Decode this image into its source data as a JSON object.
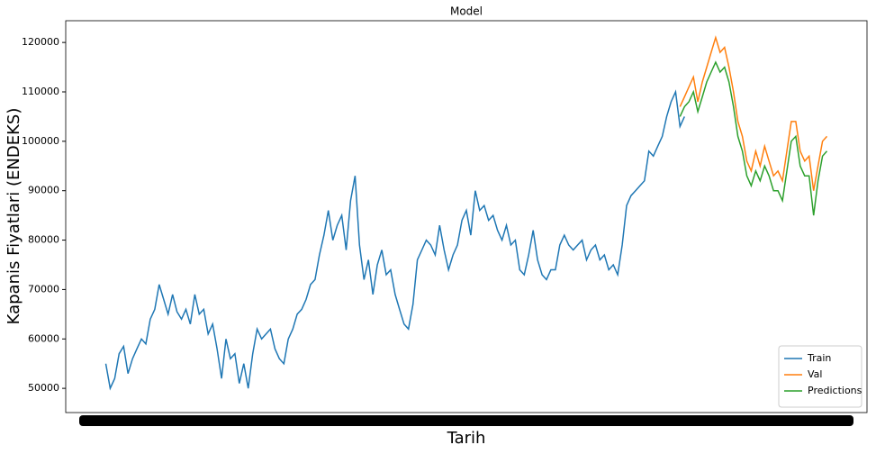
{
  "chart_data": {
    "type": "line",
    "title": "Model",
    "xlabel": "Tarih",
    "ylabel": "Kapanis Fiyatlari (ENDEKS)",
    "ylim": [
      45100,
      124400
    ],
    "yticks": [
      50000,
      60000,
      70000,
      80000,
      90000,
      100000,
      110000,
      120000
    ],
    "legend": "lower right",
    "series": [
      {
        "name": "Train",
        "color": "#1f77b4",
        "values": [
          55000,
          50000,
          52000,
          57000,
          58500,
          53000,
          56000,
          58000,
          60000,
          59000,
          64000,
          66000,
          71000,
          68000,
          65000,
          69000,
          65500,
          64000,
          66000,
          63000,
          69000,
          65000,
          66000,
          61000,
          63000,
          58000,
          52000,
          60000,
          56000,
          57000,
          51000,
          55000,
          50000,
          57000,
          62000,
          60000,
          61000,
          62000,
          58000,
          56000,
          55000,
          60000,
          62000,
          65000,
          66000,
          68000,
          71000,
          72000,
          77000,
          81000,
          86000,
          80000,
          83000,
          85000,
          78000,
          88000,
          93000,
          79000,
          72000,
          76000,
          69000,
          75000,
          78000,
          73000,
          74000,
          69000,
          66000,
          63000,
          62000,
          67000,
          76000,
          78000,
          80000,
          79000,
          77000,
          83000,
          78000,
          74000,
          77000,
          79000,
          84000,
          86000,
          81000,
          90000,
          86000,
          87000,
          84000,
          85000,
          82000,
          80000,
          83000,
          79000,
          80000,
          74000,
          73000,
          77000,
          82000,
          76000,
          73000,
          72000,
          74000,
          74000,
          79000,
          81000,
          79000,
          78000,
          79000,
          80000,
          76000,
          78000,
          79000,
          76000,
          77000,
          74000,
          75000,
          73000,
          79000,
          87000,
          89000,
          90000,
          91000,
          92000,
          98000,
          97000,
          99000,
          101000,
          105000,
          108000,
          110000,
          103000,
          105000,
          null,
          null,
          null,
          null,
          null,
          null,
          null,
          null,
          null,
          null,
          null,
          null,
          null,
          null,
          null,
          null,
          null,
          null,
          null,
          null,
          null,
          null,
          null,
          null,
          null,
          null,
          null,
          null,
          null,
          null,
          null,
          null
        ]
      },
      {
        "name": "Val",
        "color": "#ff7f0e",
        "values": [
          null,
          null,
          null,
          null,
          null,
          null,
          null,
          null,
          null,
          null,
          null,
          null,
          null,
          null,
          null,
          null,
          null,
          null,
          null,
          null,
          null,
          null,
          null,
          null,
          null,
          null,
          null,
          null,
          null,
          null,
          null,
          null,
          null,
          null,
          null,
          null,
          null,
          null,
          null,
          null,
          null,
          null,
          null,
          null,
          null,
          null,
          null,
          null,
          null,
          null,
          null,
          null,
          null,
          null,
          null,
          null,
          null,
          null,
          null,
          null,
          null,
          null,
          null,
          null,
          null,
          null,
          null,
          null,
          null,
          null,
          null,
          null,
          null,
          null,
          null,
          null,
          null,
          null,
          null,
          null,
          null,
          null,
          null,
          null,
          null,
          null,
          null,
          null,
          null,
          null,
          null,
          null,
          null,
          null,
          null,
          null,
          null,
          null,
          null,
          null,
          null,
          null,
          null,
          null,
          null,
          null,
          null,
          null,
          null,
          null,
          null,
          null,
          null,
          null,
          null,
          null,
          null,
          null,
          null,
          null,
          null,
          null,
          null,
          null,
          null,
          null,
          null,
          null,
          null,
          107000,
          109000,
          111000,
          113000,
          108000,
          112000,
          115000,
          118000,
          121000,
          118000,
          119000,
          115000,
          110000,
          104000,
          101000,
          96000,
          94000,
          98000,
          95000,
          99000,
          96000,
          93000,
          94000,
          92000,
          98000,
          104000,
          104000,
          98000,
          96000,
          97000,
          90000,
          95000,
          100000,
          101000
        ]
      },
      {
        "name": "Predictions",
        "color": "#2ca02c",
        "values": [
          null,
          null,
          null,
          null,
          null,
          null,
          null,
          null,
          null,
          null,
          null,
          null,
          null,
          null,
          null,
          null,
          null,
          null,
          null,
          null,
          null,
          null,
          null,
          null,
          null,
          null,
          null,
          null,
          null,
          null,
          null,
          null,
          null,
          null,
          null,
          null,
          null,
          null,
          null,
          null,
          null,
          null,
          null,
          null,
          null,
          null,
          null,
          null,
          null,
          null,
          null,
          null,
          null,
          null,
          null,
          null,
          null,
          null,
          null,
          null,
          null,
          null,
          null,
          null,
          null,
          null,
          null,
          null,
          null,
          null,
          null,
          null,
          null,
          null,
          null,
          null,
          null,
          null,
          null,
          null,
          null,
          null,
          null,
          null,
          null,
          null,
          null,
          null,
          null,
          null,
          null,
          null,
          null,
          null,
          null,
          null,
          null,
          null,
          null,
          null,
          null,
          null,
          null,
          null,
          null,
          null,
          null,
          null,
          null,
          null,
          null,
          null,
          null,
          null,
          null,
          null,
          null,
          null,
          null,
          null,
          null,
          null,
          null,
          null,
          null,
          null,
          null,
          null,
          null,
          105000,
          107000,
          108000,
          110000,
          106000,
          109000,
          112000,
          114000,
          116000,
          114000,
          115000,
          112000,
          107000,
          101000,
          98000,
          93000,
          91000,
          94000,
          92000,
          95000,
          93000,
          90000,
          90000,
          88000,
          94000,
          100000,
          101000,
          95000,
          93000,
          93000,
          85000,
          92000,
          97000,
          98000
        ]
      }
    ]
  }
}
